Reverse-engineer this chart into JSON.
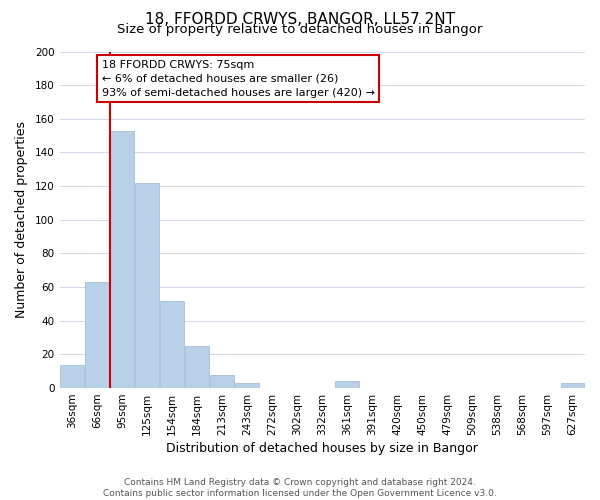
{
  "title": "18, FFORDD CRWYS, BANGOR, LL57 2NT",
  "subtitle": "Size of property relative to detached houses in Bangor",
  "xlabel": "Distribution of detached houses by size in Bangor",
  "ylabel": "Number of detached properties",
  "bar_color": "#b8d0e8",
  "bar_edge_color": "#9ab8d8",
  "categories": [
    "36sqm",
    "66sqm",
    "95sqm",
    "125sqm",
    "154sqm",
    "184sqm",
    "213sqm",
    "243sqm",
    "272sqm",
    "302sqm",
    "332sqm",
    "361sqm",
    "391sqm",
    "420sqm",
    "450sqm",
    "479sqm",
    "509sqm",
    "538sqm",
    "568sqm",
    "597sqm",
    "627sqm"
  ],
  "values": [
    14,
    63,
    153,
    122,
    52,
    25,
    8,
    3,
    0,
    0,
    0,
    4,
    0,
    0,
    0,
    0,
    0,
    0,
    0,
    0,
    3
  ],
  "vline_pos": 1.5,
  "vline_color": "#cc0000",
  "annotation_title": "18 FFORDD CRWYS: 75sqm",
  "annotation_line1": "← 6% of detached houses are smaller (26)",
  "annotation_line2": "93% of semi-detached houses are larger (420) →",
  "annotation_box_facecolor": "#ffffff",
  "annotation_box_edgecolor": "#cc0000",
  "ylim": [
    0,
    200
  ],
  "yticks": [
    0,
    20,
    40,
    60,
    80,
    100,
    120,
    140,
    160,
    180,
    200
  ],
  "footer1": "Contains HM Land Registry data © Crown copyright and database right 2024.",
  "footer2": "Contains public sector information licensed under the Open Government Licence v3.0.",
  "background_color": "#ffffff",
  "grid_color": "#d0d8e8",
  "title_fontsize": 11,
  "subtitle_fontsize": 9.5,
  "axis_label_fontsize": 9,
  "tick_fontsize": 7.5,
  "footer_fontsize": 6.5,
  "annotation_fontsize": 8
}
